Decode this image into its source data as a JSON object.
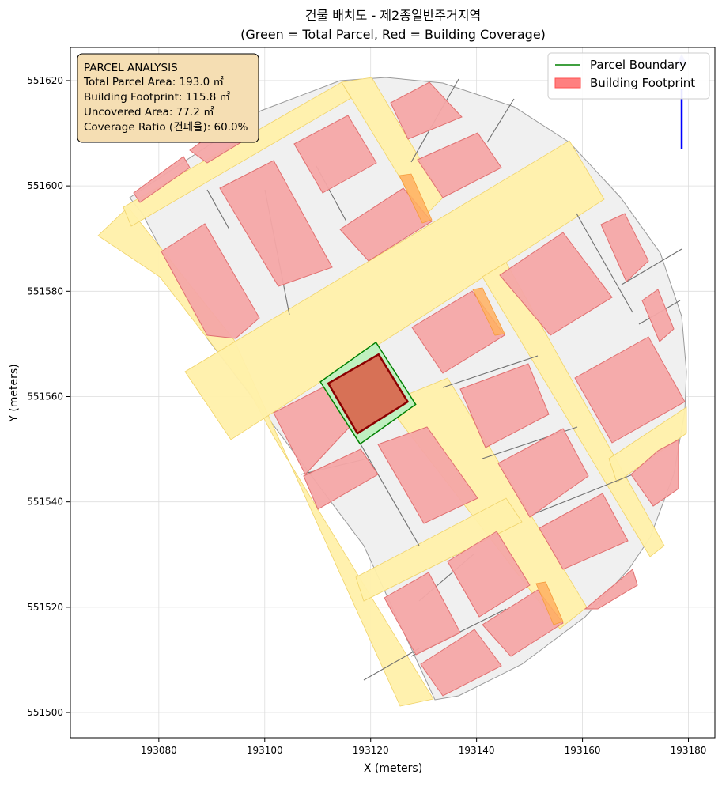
{
  "chart_data": {
    "type": "map",
    "title": "건물 배치도 - 제2종일반주거지역",
    "subtitle": "(Green = Total Parcel, Red = Building Coverage)",
    "xlabel": "X (meters)",
    "ylabel": "Y (meters)",
    "xlim": [
      193063.3,
      193185.0
    ],
    "ylim": [
      551495.2,
      551626.3
    ],
    "xticks": [
      193080,
      193100,
      193120,
      193140,
      193160,
      193180
    ],
    "yticks": [
      551500,
      551520,
      551540,
      551560,
      551580,
      551600,
      551620
    ],
    "grid": true,
    "legend": {
      "position": "top-right",
      "entries": [
        {
          "label": "Parcel Boundary",
          "color": "#008000",
          "kind": "line"
        },
        {
          "label": "Building Footprint",
          "color": "#ff7f7f",
          "kind": "patch"
        }
      ]
    },
    "info_box": {
      "title": "PARCEL ANALYSIS",
      "lines": [
        "Total Parcel Area: 193.0 ㎡",
        "Building Footprint: 115.8 ㎡",
        "Uncovered Area: 77.2 ㎡",
        "Coverage Ratio (건폐율): 60.0%"
      ]
    },
    "colors": {
      "parcel_fill": "#c0f0c0",
      "parcel_edge": "#008000",
      "building_fill": "#d9664d",
      "building_edge": "#8b0000",
      "context_building": "#f4a6a6",
      "road": "#fff0aa",
      "lot": "#f0f0f0",
      "north_arrow": "#0000ff"
    },
    "target_parcel": [
      [
        193110.5,
        551562.8
      ],
      [
        193121.0,
        551570.3
      ],
      [
        193128.5,
        551558.5
      ],
      [
        193118.0,
        551551.0
      ]
    ],
    "target_building": [
      [
        193112.0,
        551562.5
      ],
      [
        193121.5,
        551568.0
      ],
      [
        193127.0,
        551559.0
      ],
      [
        193117.5,
        551553.0
      ]
    ]
  }
}
